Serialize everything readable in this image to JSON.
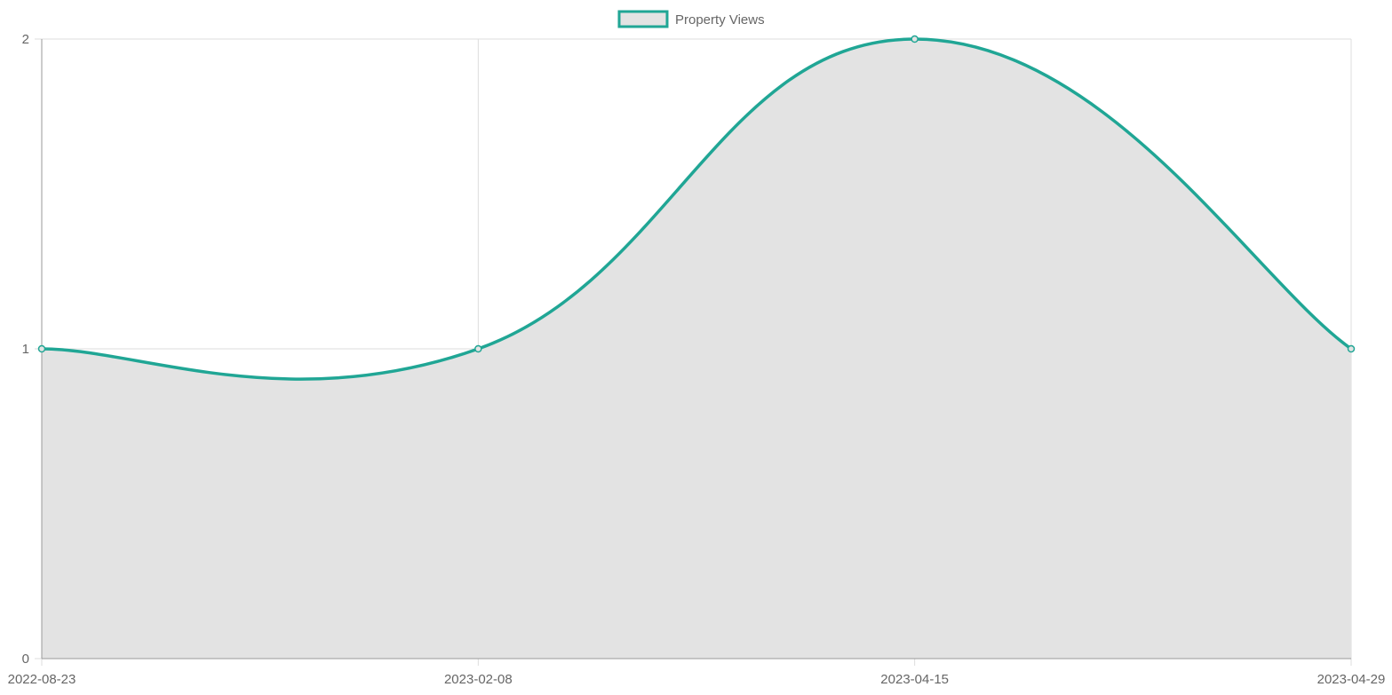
{
  "chart_data": {
    "type": "area",
    "categories": [
      "2022-08-23",
      "2023-02-08",
      "2023-04-15",
      "2023-04-29"
    ],
    "series": [
      {
        "name": "Property Views",
        "values": [
          1,
          1,
          2,
          1
        ],
        "line_color": "#20a695",
        "fill_color": "#e3e3e3"
      }
    ],
    "ylim": [
      0,
      2
    ],
    "y_ticks": [
      "0",
      "1",
      "2"
    ],
    "grid": true,
    "legend": "top-center",
    "smooth": true
  }
}
